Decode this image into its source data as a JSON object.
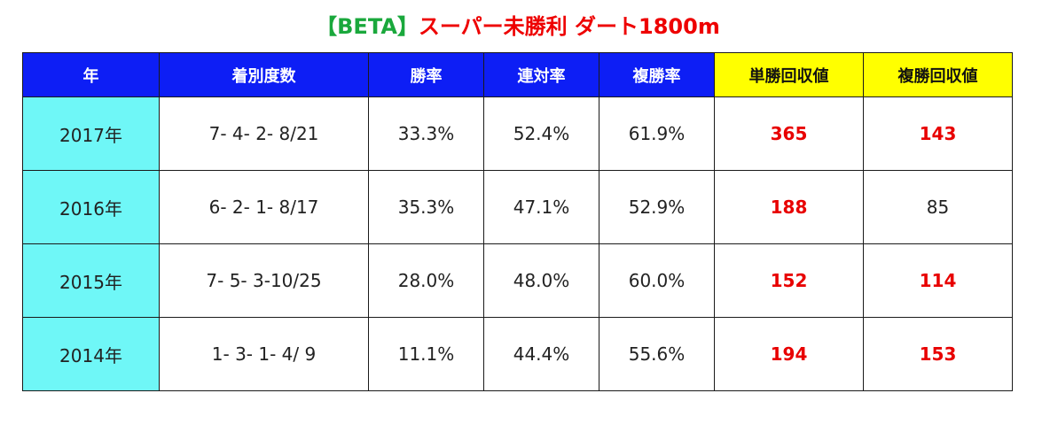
{
  "title": {
    "beta": "【BETA】",
    "name": "スーパー未勝利 ダート1800m"
  },
  "colors": {
    "header_blue": "#0d1ef5",
    "header_yellow": "#ffff00",
    "year_cyan": "#6ff7f7",
    "highlight_red": "#e80000",
    "beta_green": "#1aa83c"
  },
  "table": {
    "headers": [
      "年",
      "着別度数",
      "勝率",
      "連対率",
      "複勝率",
      "単勝回収値",
      "複勝回収値"
    ],
    "rows": [
      {
        "year": "2017年",
        "record": "7- 4- 2- 8/21",
        "win": "33.3%",
        "quinella": "52.4%",
        "place": "61.9%",
        "win_return": "365",
        "place_return": "143",
        "win_return_hi": true,
        "place_return_hi": true
      },
      {
        "year": "2016年",
        "record": "6- 2- 1- 8/17",
        "win": "35.3%",
        "quinella": "47.1%",
        "place": "52.9%",
        "win_return": "188",
        "place_return": "85",
        "win_return_hi": true,
        "place_return_hi": false
      },
      {
        "year": "2015年",
        "record": "7- 5- 3-10/25",
        "win": "28.0%",
        "quinella": "48.0%",
        "place": "60.0%",
        "win_return": "152",
        "place_return": "114",
        "win_return_hi": true,
        "place_return_hi": true
      },
      {
        "year": "2014年",
        "record": "1- 3- 1- 4/ 9",
        "win": "11.1%",
        "quinella": "44.4%",
        "place": "55.6%",
        "win_return": "194",
        "place_return": "153",
        "win_return_hi": true,
        "place_return_hi": true
      }
    ]
  }
}
